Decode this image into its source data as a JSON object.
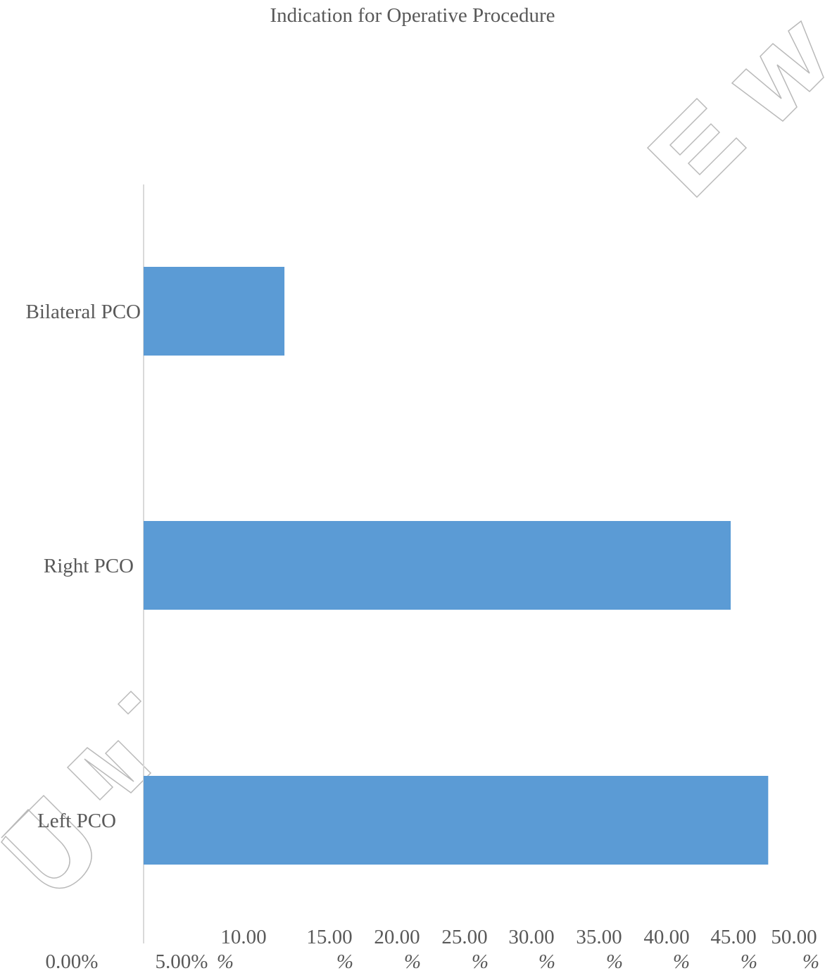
{
  "chart_data": {
    "type": "bar",
    "orientation": "horizontal",
    "title": "Indication for Operative Procedure",
    "categories": [
      "Bilateral PCO",
      "Right PCO",
      "Left PCO"
    ],
    "values": [
      0.1085,
      0.4523,
      0.4812
    ],
    "xlim": [
      0,
      0.5
    ],
    "x_ticks": [
      0,
      0.05,
      0.1,
      0.15,
      0.2,
      0.25,
      0.3,
      0.35,
      0.4,
      0.45,
      0.5
    ],
    "x_tick_labels": [
      "0.00%",
      "5.00%",
      "10.00%",
      "15.00%",
      "20.00%",
      "25.00%",
      "30.00%",
      "35.00%",
      "40.00%",
      "45.00%",
      "50.00%"
    ],
    "xlabel": "",
    "ylabel": "",
    "grid": false,
    "legend": "none",
    "bar_color": "#5b9bd5",
    "watermark_text": "UNIVERSITY OF NAIROBI REVIEW"
  }
}
